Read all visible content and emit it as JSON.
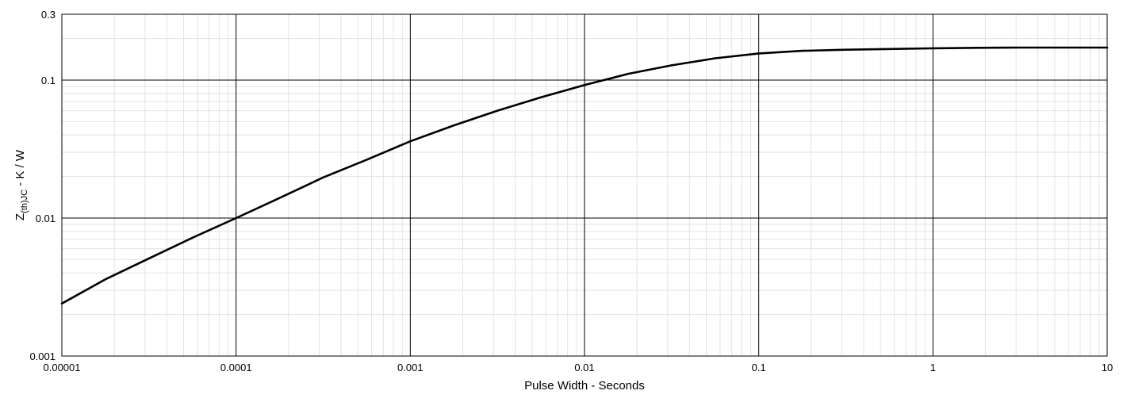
{
  "chart_data": {
    "type": "line",
    "title": "",
    "xlabel": "Pulse Width - Seconds",
    "ylabel": {
      "main": "Z",
      "subscript": "(th)JC",
      "suffix": " - K / W"
    },
    "x_scale": "log",
    "y_scale": "log",
    "xlim": [
      1e-05,
      10
    ],
    "ylim": [
      0.001,
      0.3
    ],
    "x_ticks": [
      "0.00001",
      "0.0001",
      "0.001",
      "0.01",
      "0.1",
      "1",
      "10"
    ],
    "x_tick_values": [
      1e-05,
      0.0001,
      0.001,
      0.01,
      0.1,
      1,
      10
    ],
    "y_ticks": [
      "0.001",
      "0.01",
      "0.1",
      "0.3"
    ],
    "y_tick_values": [
      0.001,
      0.01,
      0.1,
      0.3
    ],
    "grid": true,
    "minor_grid": true,
    "series": [
      {
        "color": "#000000",
        "x": [
          1e-05,
          1.78e-05,
          3.16e-05,
          5.62e-05,
          0.0001,
          0.000178,
          0.000316,
          0.000562,
          0.001,
          0.00178,
          0.00316,
          0.00562,
          0.01,
          0.0178,
          0.0316,
          0.0562,
          0.1,
          0.178,
          0.316,
          0.562,
          1,
          1.78,
          3.16,
          5.62,
          10
        ],
        "y": [
          0.0024,
          0.0036,
          0.0051,
          0.0072,
          0.01,
          0.014,
          0.0197,
          0.0265,
          0.036,
          0.047,
          0.06,
          0.075,
          0.092,
          0.111,
          0.128,
          0.144,
          0.156,
          0.163,
          0.166,
          0.168,
          0.17,
          0.1715,
          0.172,
          0.172,
          0.172
        ]
      }
    ]
  }
}
